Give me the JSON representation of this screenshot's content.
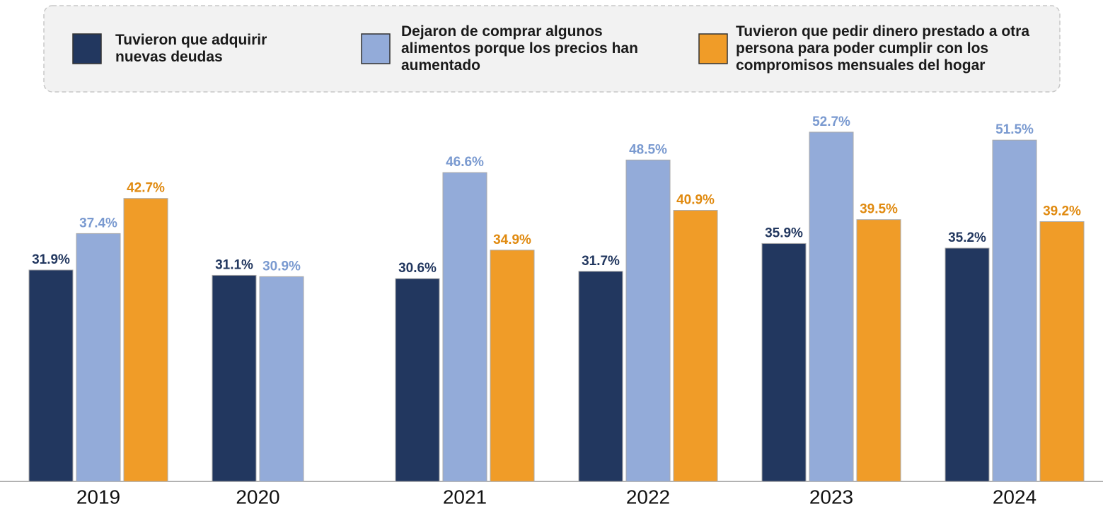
{
  "chart_data": {
    "type": "bar",
    "categories": [
      "2019",
      "2020",
      "2021",
      "2022",
      "2023",
      "2024"
    ],
    "series": [
      {
        "name": "Tuvieron que adquirir nuevas deudas",
        "color": "#22375f",
        "label_color": "#22375f",
        "values": [
          31.9,
          31.1,
          30.6,
          31.7,
          35.9,
          35.2
        ],
        "value_labels": [
          "31.9%",
          "31.1%",
          "30.6%",
          "31.7%",
          "35.9%",
          "35.2%"
        ]
      },
      {
        "name": "Dejaron de comprar algunos alimentos porque los precios han aumentado",
        "color": "#93abd9",
        "label_color": "#7a9ad0",
        "values": [
          37.4,
          30.9,
          46.6,
          48.5,
          52.7,
          51.5
        ],
        "value_labels": [
          "37.4%",
          "30.9%",
          "46.6%",
          "48.5%",
          "52.7%",
          "51.5%"
        ]
      },
      {
        "name": "Tuvieron que pedir dinero prestado a otra persona para poder cumplir con los compromisos mensuales del hogar",
        "color": "#f09c28",
        "label_color": "#e08a10",
        "values": [
          42.7,
          null,
          34.9,
          40.9,
          39.5,
          39.2
        ],
        "value_labels": [
          "42.7%",
          null,
          "34.9%",
          "40.9%",
          "39.5%",
          "39.2%"
        ]
      }
    ],
    "ylim": [
      0,
      60
    ],
    "grid": false
  }
}
